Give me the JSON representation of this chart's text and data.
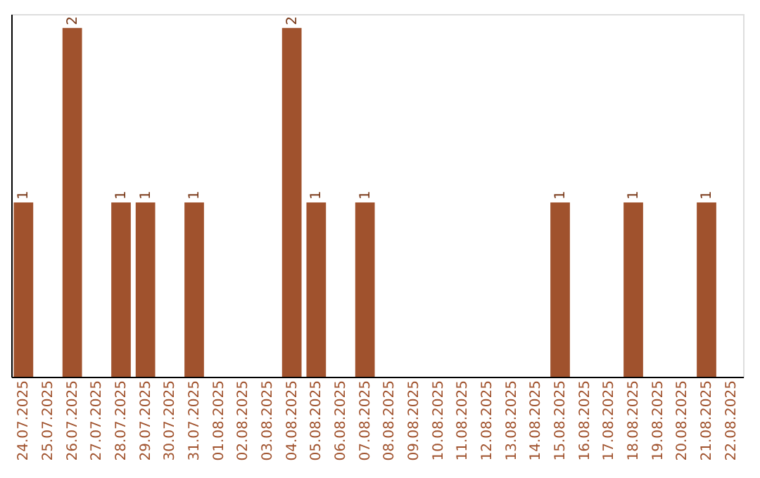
{
  "chart_data": {
    "type": "bar",
    "categories": [
      "24.07.2025",
      "25.07.2025",
      "26.07.2025",
      "27.07.2025",
      "28.07.2025",
      "29.07.2025",
      "30.07.2025",
      "31.07.2025",
      "01.08.2025",
      "02.08.2025",
      "03.08.2025",
      "04.08.2025",
      "05.08.2025",
      "06.08.2025",
      "07.08.2025",
      "08.08.2025",
      "09.08.2025",
      "10.08.2025",
      "11.08.2025",
      "12.08.2025",
      "13.08.2025",
      "14.08.2025",
      "15.08.2025",
      "16.08.2025",
      "17.08.2025",
      "18.08.2025",
      "19.08.2025",
      "20.08.2025",
      "21.08.2025",
      "22.08.2025"
    ],
    "values": [
      1,
      0,
      2,
      0,
      1,
      1,
      0,
      1,
      0,
      0,
      0,
      2,
      1,
      0,
      1,
      0,
      0,
      0,
      0,
      0,
      0,
      0,
      1,
      0,
      0,
      1,
      0,
      0,
      1,
      0
    ],
    "value_labels": [
      "1",
      null,
      "2",
      null,
      "1",
      "1",
      null,
      "1",
      null,
      null,
      null,
      "2",
      "1",
      null,
      "1",
      null,
      null,
      null,
      null,
      null,
      null,
      null,
      "1",
      null,
      null,
      "1",
      null,
      null,
      "1",
      null
    ],
    "color": "#a0522d",
    "ylim": [
      0,
      2.08
    ],
    "tick_labels": "x",
    "grid": false
  }
}
